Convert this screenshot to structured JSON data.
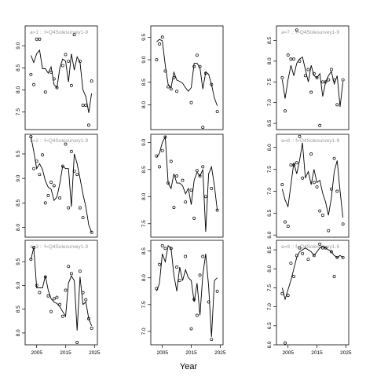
{
  "figure": {
    "xlabel": "Year"
  },
  "chart_data": [
    {
      "type": "line",
      "label": "a=1 :: f=Q4Solesurvey1-9",
      "x": [
        2003,
        2004,
        2005,
        2006,
        2007,
        2008,
        2009,
        2010,
        2011,
        2012,
        2013,
        2014,
        2015,
        2016,
        2017,
        2018,
        2019,
        2020,
        2021,
        2022,
        2023,
        2024
      ],
      "line": [
        8.78,
        8.62,
        8.82,
        8.9,
        8.48,
        8.48,
        8.38,
        8.52,
        8.12,
        8.05,
        8.5,
        8.7,
        8.65,
        8.18,
        8.82,
        8.45,
        8.75,
        8.62,
        8.0,
        7.85,
        7.48,
        7.92
      ],
      "points": [
        8.35,
        8.12,
        9.15,
        9.15,
        7.95,
        8.4,
        8.25,
        8.05,
        8.55,
        8.8,
        8.65,
        8.1,
        9.25,
        8.65,
        7.65,
        7.65,
        7.2,
        8.2
      ],
      "points_x": [
        2003,
        2004,
        2005,
        2006,
        2008,
        2010,
        2011,
        2012,
        2014,
        2015,
        2016,
        2017,
        2018,
        2020,
        2021,
        2022,
        2023,
        2024
      ],
      "yticks": [
        7.5,
        8.0,
        8.5,
        9.0
      ],
      "ylim": [
        7.1,
        9.45
      ],
      "xlim": [
        2001,
        2026
      ],
      "xticks": [
        2005,
        2015,
        2025
      ],
      "show_xticks": false
    },
    {
      "type": "line",
      "label": "a=2 :: f=Q4Solesurvey1-9",
      "x": [
        2003,
        2004,
        2005,
        2006,
        2007,
        2008,
        2009,
        2010,
        2011,
        2012,
        2013,
        2014,
        2015,
        2016,
        2017,
        2018,
        2019,
        2020,
        2021,
        2022,
        2023,
        2024
      ],
      "line": [
        9.85,
        9.55,
        9.2,
        9.3,
        9.18,
        8.95,
        8.82,
        8.78,
        8.55,
        8.62,
        8.9,
        9.25,
        9.2,
        9.2,
        8.42,
        9.5,
        9.3,
        9.0,
        8.68,
        8.42,
        8.05,
        7.9
      ],
      "points": [
        9.85,
        9.2,
        9.35,
        9.08,
        9.48,
        8.5,
        8.65,
        8.92,
        8.85,
        8.6,
        9.25,
        9.7,
        8.4,
        9.55,
        9.15,
        9.08,
        8.4,
        8.2,
        7.9
      ],
      "points_x": [
        2003,
        2004,
        2005,
        2006,
        2007,
        2008,
        2009,
        2010,
        2011,
        2013,
        2014,
        2015,
        2016,
        2017,
        2018,
        2019,
        2020,
        2021,
        2024
      ],
      "yticks": [
        8.0,
        8.5,
        9.0,
        9.5
      ],
      "ylim": [
        7.8,
        9.9
      ],
      "xlim": [
        2001,
        2026
      ],
      "xticks": [
        2005,
        2015,
        2025
      ],
      "show_xticks": false
    },
    {
      "type": "line",
      "label": "a=3 :: f=Q4Solesurvey1-9",
      "x": [
        2003,
        2004,
        2005,
        2006,
        2007,
        2008,
        2009,
        2010,
        2011,
        2012,
        2013,
        2014,
        2015,
        2016,
        2017,
        2018,
        2019,
        2020,
        2021,
        2022,
        2023,
        2024
      ],
      "line": [
        9.55,
        9.8,
        8.95,
        8.95,
        8.95,
        9.2,
        8.9,
        8.72,
        8.65,
        8.62,
        8.55,
        8.45,
        8.35,
        9.05,
        9.2,
        9.1,
        8.05,
        9.18,
        8.6,
        8.65,
        8.3,
        8.15
      ],
      "points": [
        9.55,
        9.8,
        9.0,
        8.85,
        9.18,
        8.78,
        8.45,
        8.72,
        8.75,
        8.6,
        8.35,
        8.9,
        9.4,
        9.25,
        7.8,
        9.3,
        8.85,
        8.7,
        8.3,
        8.1
      ],
      "points_x": [
        2003,
        2004,
        2005,
        2006,
        2008,
        2009,
        2010,
        2011,
        2012,
        2013,
        2014,
        2015,
        2016,
        2017,
        2019,
        2020,
        2021,
        2022,
        2023,
        2024
      ],
      "yticks": [
        8.0,
        8.5,
        9.0,
        9.5
      ],
      "ylim": [
        7.75,
        9.95
      ],
      "xlim": [
        2001,
        2026
      ],
      "xticks": [
        2005,
        2015,
        2025
      ],
      "show_xticks": true
    },
    {
      "type": "line",
      "label": "",
      "x": [
        2003,
        2004,
        2005,
        2006,
        2007,
        2008,
        2009,
        2010,
        2011,
        2012,
        2013,
        2014,
        2015,
        2016,
        2017,
        2018,
        2019,
        2020,
        2021,
        2022,
        2023,
        2024
      ],
      "line": [
        9.4,
        9.45,
        9.42,
        8.88,
        8.45,
        8.38,
        8.72,
        8.55,
        8.52,
        8.48,
        8.38,
        8.3,
        8.38,
        8.92,
        8.92,
        8.82,
        8.35,
        8.72,
        8.68,
        8.45,
        8.15,
        7.98
      ],
      "points": [
        9.0,
        9.35,
        9.5,
        8.75,
        8.4,
        8.35,
        8.6,
        8.3,
        8.05,
        8.85,
        9.1,
        8.85,
        7.5,
        8.7,
        8.45,
        7.85
      ],
      "points_x": [
        2003,
        2004,
        2005,
        2006,
        2007,
        2008,
        2009,
        2010,
        2015,
        2016,
        2017,
        2018,
        2019,
        2020,
        2022,
        2024
      ],
      "yticks": [
        8.0,
        8.5,
        9.0,
        9.5
      ],
      "ylim": [
        7.45,
        9.75
      ],
      "xlim": [
        2001,
        2026
      ],
      "xticks": [
        2005,
        2015,
        2025
      ],
      "show_xticks": false
    },
    {
      "type": "line",
      "label": "",
      "x": [
        2003,
        2004,
        2005,
        2006,
        2007,
        2008,
        2009,
        2010,
        2011,
        2012,
        2013,
        2014,
        2015,
        2016,
        2017,
        2018,
        2019,
        2020,
        2021,
        2022,
        2023,
        2024
      ],
      "line": [
        8.72,
        8.8,
        9.0,
        9.1,
        8.25,
        8.15,
        8.42,
        8.25,
        8.25,
        8.2,
        8.05,
        8.15,
        7.85,
        8.3,
        8.45,
        8.38,
        8.5,
        7.35,
        8.42,
        8.55,
        8.2,
        7.75
      ],
      "points": [
        8.75,
        8.55,
        8.85,
        9.1,
        8.25,
        8.65,
        7.8,
        8.38,
        8.3,
        7.9,
        8.12,
        7.6,
        8.48,
        8.38,
        8.55,
        8.0,
        8.15,
        7.75
      ],
      "points_x": [
        2003,
        2004,
        2005,
        2006,
        2007,
        2008,
        2009,
        2010,
        2012,
        2013,
        2015,
        2016,
        2017,
        2018,
        2019,
        2020,
        2022,
        2024
      ],
      "yticks": [
        7.5,
        8.0,
        8.5,
        9.0
      ],
      "ylim": [
        7.25,
        9.15
      ],
      "xlim": [
        2001,
        2026
      ],
      "xticks": [
        2005,
        2015,
        2025
      ],
      "show_xticks": false
    },
    {
      "type": "line",
      "label": "",
      "x": [
        2003,
        2004,
        2005,
        2006,
        2007,
        2008,
        2009,
        2010,
        2011,
        2012,
        2013,
        2014,
        2015,
        2016,
        2017,
        2018,
        2019,
        2020,
        2021,
        2022,
        2023,
        2024
      ],
      "line": [
        7.75,
        7.9,
        8.45,
        8.3,
        8.6,
        8.55,
        8.05,
        7.75,
        8.2,
        7.95,
        8.15,
        8.0,
        7.95,
        7.55,
        7.9,
        7.3,
        8.05,
        8.45,
        7.85,
        6.9,
        7.95,
        8.0
      ],
      "points": [
        7.8,
        8.25,
        8.6,
        8.55,
        8.55,
        8.2,
        7.95,
        8.4,
        7.05,
        7.6,
        7.3,
        8.05,
        8.4,
        7.55,
        6.85,
        7.75
      ],
      "points_x": [
        2003,
        2004,
        2005,
        2006,
        2008,
        2010,
        2011,
        2013,
        2015,
        2016,
        2017,
        2018,
        2019,
        2021,
        2022,
        2024
      ],
      "yticks": [
        7.0,
        7.5,
        8.0,
        8.5
      ],
      "ylim": [
        6.75,
        8.7
      ],
      "xlim": [
        2001,
        2026
      ],
      "xticks": [
        2005,
        2015,
        2025
      ],
      "show_xticks": true
    },
    {
      "type": "line",
      "label": "a=7 :: f=Q4Solesurvey1-9",
      "x": [
        2003,
        2004,
        2005,
        2006,
        2007,
        2008,
        2009,
        2010,
        2011,
        2012,
        2013,
        2014,
        2015,
        2016,
        2017,
        2018,
        2019,
        2020,
        2021,
        2022,
        2023,
        2024
      ],
      "line": [
        7.55,
        7.1,
        7.55,
        7.9,
        7.65,
        7.95,
        8.05,
        8.1,
        7.8,
        7.5,
        7.9,
        7.65,
        7.6,
        7.7,
        7.15,
        7.5,
        7.65,
        7.75,
        7.45,
        7.65,
        6.9,
        7.5
      ],
      "points": [
        7.6,
        6.8,
        8.15,
        8.05,
        8.05,
        8.75,
        8.0,
        7.65,
        7.8,
        7.25,
        7.7,
        7.6,
        6.45,
        7.5,
        7.5,
        7.55,
        7.8,
        7.55,
        6.95,
        7.55
      ],
      "points_x": [
        2003,
        2004,
        2005,
        2006,
        2007,
        2008,
        2009,
        2011,
        2012,
        2013,
        2014,
        2015,
        2016,
        2017,
        2018,
        2019,
        2020,
        2021,
        2022,
        2024
      ],
      "yticks": [
        6.5,
        7.0,
        7.5,
        8.0,
        8.5
      ],
      "ylim": [
        6.35,
        8.85
      ],
      "xlim": [
        2001,
        2026
      ],
      "xticks": [
        2005,
        2015,
        2025
      ],
      "show_xticks": false
    },
    {
      "type": "line",
      "label": "a=8 :: f=Q4Solesurvey1-9",
      "x": [
        2003,
        2004,
        2005,
        2006,
        2007,
        2008,
        2009,
        2010,
        2011,
        2012,
        2013,
        2014,
        2015,
        2016,
        2017,
        2018,
        2019,
        2020,
        2021,
        2022,
        2023,
        2024
      ],
      "line": [
        7.05,
        6.8,
        6.65,
        7.15,
        7.65,
        7.4,
        7.7,
        8.1,
        7.3,
        7.45,
        7.15,
        7.5,
        7.2,
        7.25,
        6.95,
        6.75,
        6.45,
        6.85,
        7.45,
        7.7,
        7.0,
        6.4
      ],
      "points": [
        7.15,
        6.3,
        6.2,
        7.6,
        7.6,
        7.65,
        8.25,
        7.3,
        7.85,
        7.2,
        7.1,
        6.55,
        6.45,
        6.1,
        7.05,
        7.75,
        7.0,
        6.25
      ],
      "points_x": [
        2003,
        2004,
        2005,
        2006,
        2007,
        2008,
        2009,
        2010,
        2013,
        2014,
        2015,
        2016,
        2017,
        2019,
        2020,
        2021,
        2022,
        2024
      ],
      "yticks": [
        6.0,
        6.5,
        7.0,
        7.5,
        8.0
      ],
      "ylim": [
        5.95,
        8.3
      ],
      "xlim": [
        2001,
        2026
      ],
      "xticks": [
        2005,
        2015,
        2025
      ],
      "show_xticks": false
    },
    {
      "type": "line",
      "label": "a=9 :: f=Q4Solesurvey1-9",
      "x": [
        2003,
        2004,
        2005,
        2006,
        2007,
        2008,
        2009,
        2010,
        2011,
        2012,
        2013,
        2014,
        2015,
        2016,
        2017,
        2018,
        2019,
        2020,
        2021,
        2022,
        2023,
        2024
      ],
      "line": [
        7.5,
        7.2,
        7.45,
        7.7,
        8.0,
        8.3,
        8.45,
        8.5,
        8.55,
        8.5,
        8.45,
        8.35,
        8.45,
        8.55,
        8.6,
        8.55,
        8.5,
        8.45,
        8.35,
        8.3,
        8.35,
        8.3
      ],
      "points": [
        7.35,
        6.05,
        7.3,
        8.15,
        7.8,
        8.35,
        8.55,
        8.4,
        8.25,
        8.35,
        8.65,
        8.55,
        8.55,
        8.45,
        7.8,
        8.3,
        8.3
      ],
      "points_x": [
        2003,
        2004,
        2005,
        2006,
        2007,
        2008,
        2009,
        2010,
        2012,
        2014,
        2016,
        2017,
        2018,
        2020,
        2021,
        2022,
        2024
      ],
      "yticks": [
        6.0,
        6.5,
        7.0,
        7.5,
        8.0,
        8.5
      ],
      "ylim": [
        6.0,
        8.75
      ],
      "xlim": [
        2001,
        2026
      ],
      "xticks": [
        2005,
        2015,
        2025
      ],
      "show_xticks": true
    }
  ]
}
